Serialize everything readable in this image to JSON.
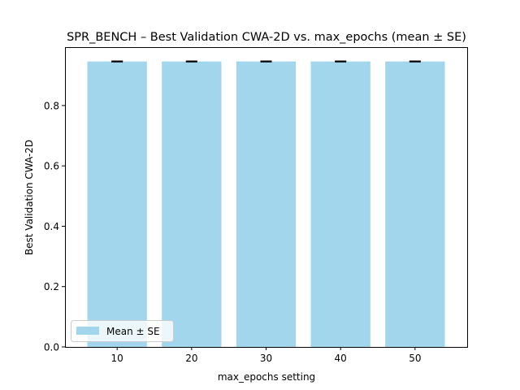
{
  "chart_data": {
    "type": "bar",
    "title": "SPR_BENCH – Best Validation CWA-2D vs. max_epochs (mean ± SE)",
    "xlabel": "max_epochs setting",
    "ylabel": "Best Validation CWA-2D",
    "categories": [
      "10",
      "20",
      "30",
      "40",
      "50"
    ],
    "series": [
      {
        "name": "Mean ± SE",
        "values": [
          0.946,
          0.946,
          0.946,
          0.946,
          0.946
        ],
        "error": [
          0.001,
          0.001,
          0.001,
          0.001,
          0.001
        ]
      }
    ],
    "ylim": [
      0,
      0.9935
    ],
    "yticks": [
      0.0,
      0.2,
      0.4,
      0.6,
      0.8
    ],
    "ytick_labels": [
      "0.0",
      "0.2",
      "0.4",
      "0.6",
      "0.8"
    ],
    "grid": false,
    "legend_position": "lower-left",
    "colors": {
      "bar": "#a2d6ec",
      "error": "#000000"
    }
  }
}
